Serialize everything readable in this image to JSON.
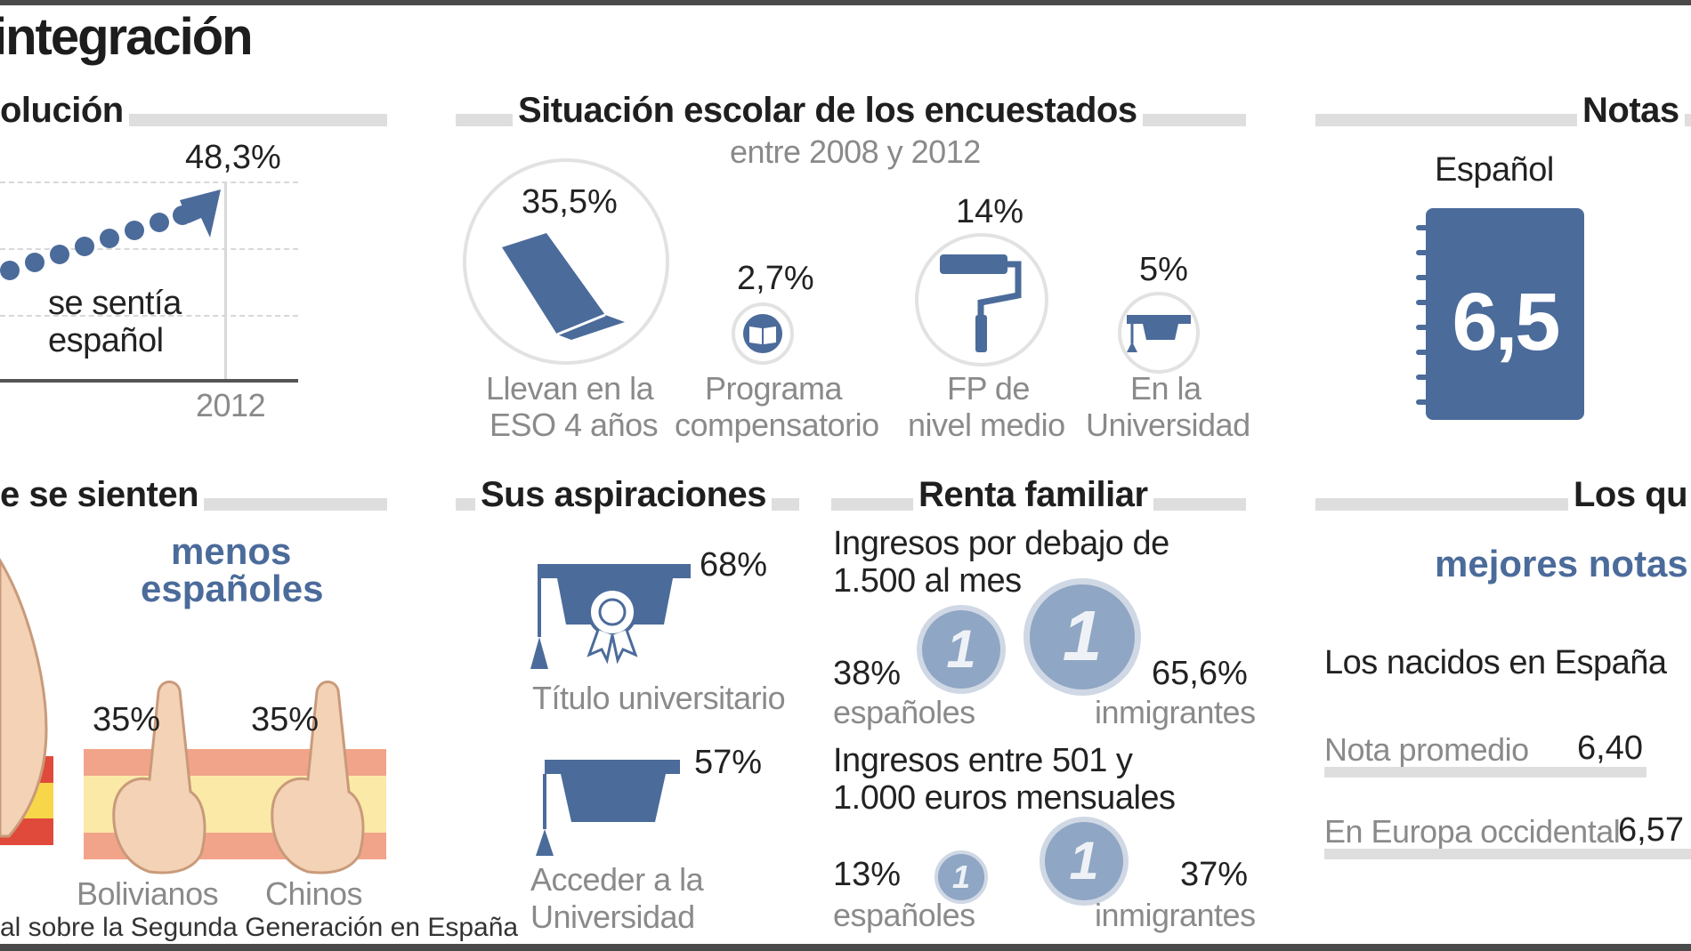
{
  "title": "integración",
  "colors": {
    "accent": "#4b6b9a",
    "grey_bar": "#dedede",
    "flag_red": "#e04a3a",
    "flag_yellow": "#f7d64a"
  },
  "evolucion": {
    "heading": "olución",
    "value": "48,3%",
    "label_line1": "se sentía",
    "label_line2": "español",
    "year": "2012"
  },
  "situacion": {
    "heading": "Situación escolar de los encuestados",
    "subheading": "entre 2008 y 2012",
    "items": [
      {
        "value": "35,5%",
        "line1": "Llevan en la",
        "line2": "ESO 4 años",
        "icon": "book-icon"
      },
      {
        "value": "2,7%",
        "line1": "Programa",
        "line2": "compensatorio",
        "icon": "open-book-icon"
      },
      {
        "value": "14%",
        "line1": "FP de",
        "line2": "nivel medio",
        "icon": "paint-roller-icon"
      },
      {
        "value": "5%",
        "line1": "En la",
        "line2": "Universidad",
        "icon": "graduation-cap-icon"
      }
    ]
  },
  "notas": {
    "heading": "Notas",
    "subject": "Español",
    "grade": "6,5"
  },
  "sienten": {
    "heading": "e se sienten",
    "menos_line1": "menos",
    "menos_line2": "españoles",
    "groups": [
      {
        "value": "35%",
        "label": "Bolivianos"
      },
      {
        "value": "35%",
        "label": "Chinos"
      }
    ]
  },
  "aspiraciones": {
    "heading": "Sus aspiraciones",
    "items": [
      {
        "value": "68%",
        "line1": "Título universitario",
        "line2": ""
      },
      {
        "value": "57%",
        "line1": "Acceder a la",
        "line2": "Universidad"
      }
    ]
  },
  "renta": {
    "heading": "Renta familiar",
    "blocks": [
      {
        "title_line1": "Ingresos por debajo de",
        "title_line2": "1.500 al mes",
        "esp_value": "38%",
        "esp_label": "españoles",
        "inm_value": "65,6%",
        "inm_label": "inmigrantes"
      },
      {
        "title_line1": "Ingresos entre 501 y",
        "title_line2": "1.000 euros mensuales",
        "esp_value": "13%",
        "esp_label": "españoles",
        "inm_value": "37%",
        "inm_label": "inmigrantes"
      }
    ],
    "coin_symbol": "1"
  },
  "mejores": {
    "heading": "Los qu",
    "subheading": "mejores notas",
    "group": "Los nacidos en España",
    "rows": [
      {
        "label": "Nota promedio",
        "value": "6,40"
      },
      {
        "label": "En Europa  occidental",
        "value": "6,57"
      }
    ]
  },
  "source": "al sobre la Segunda Generación en España"
}
